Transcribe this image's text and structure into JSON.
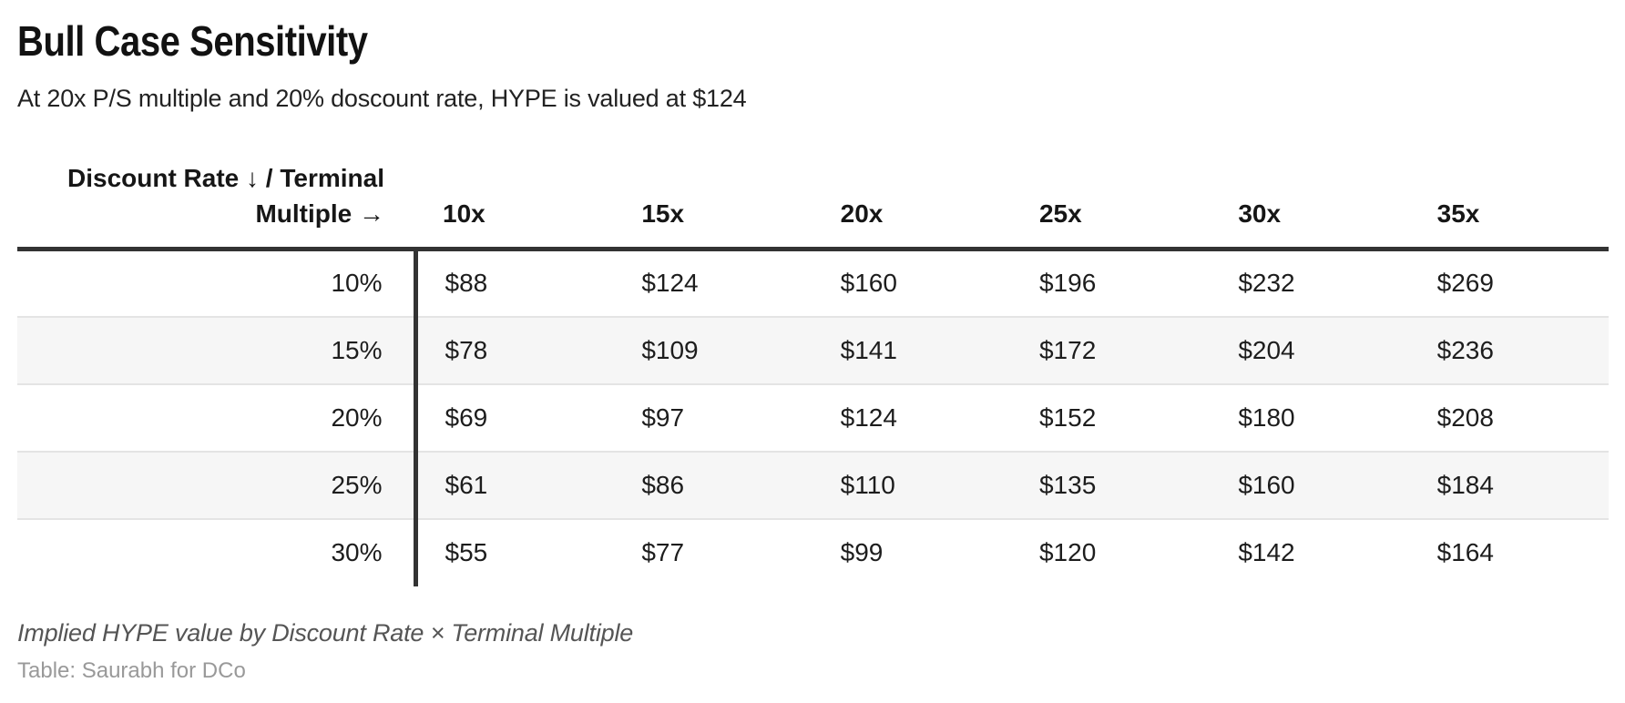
{
  "chart_data": {
    "type": "table",
    "title": "Bull Case Sensitivity",
    "subtitle": "At 20x P/S multiple and 20% doscount rate, HYPE is valued at $124",
    "corner_label": "Discount Rate ↓ / Terminal\nMultiple →",
    "columns": [
      "10x",
      "15x",
      "20x",
      "25x",
      "30x",
      "35x"
    ],
    "rows": [
      {
        "label": "10%",
        "values": [
          "$88",
          "$124",
          "$160",
          "$196",
          "$232",
          "$269"
        ]
      },
      {
        "label": "15%",
        "values": [
          "$78",
          "$109",
          "$141",
          "$172",
          "$204",
          "$236"
        ]
      },
      {
        "label": "20%",
        "values": [
          "$69",
          "$97",
          "$124",
          "$152",
          "$180",
          "$208"
        ]
      },
      {
        "label": "25%",
        "values": [
          "$61",
          "$86",
          "$110",
          "$135",
          "$160",
          "$184"
        ]
      },
      {
        "label": "30%",
        "values": [
          "$55",
          "$77",
          "$99",
          "$120",
          "$142",
          "$164"
        ]
      }
    ],
    "note": "Implied HYPE value by Discount Rate × Terminal Multiple",
    "credit": "Table: Saurabh for DCo",
    "layout_hints": {
      "zebra_rows": "even rows shaded",
      "header_rule": "thick dark rule under column headers",
      "row_label_divider": "thick dark vertical rule right of row labels"
    },
    "colors": {
      "rule": "#333333",
      "zebra_row": "#f6f6f6",
      "row_border": "#e4e4e4",
      "text": "#1d1d1d",
      "note_text": "#555555",
      "credit_text": "#999999"
    }
  }
}
